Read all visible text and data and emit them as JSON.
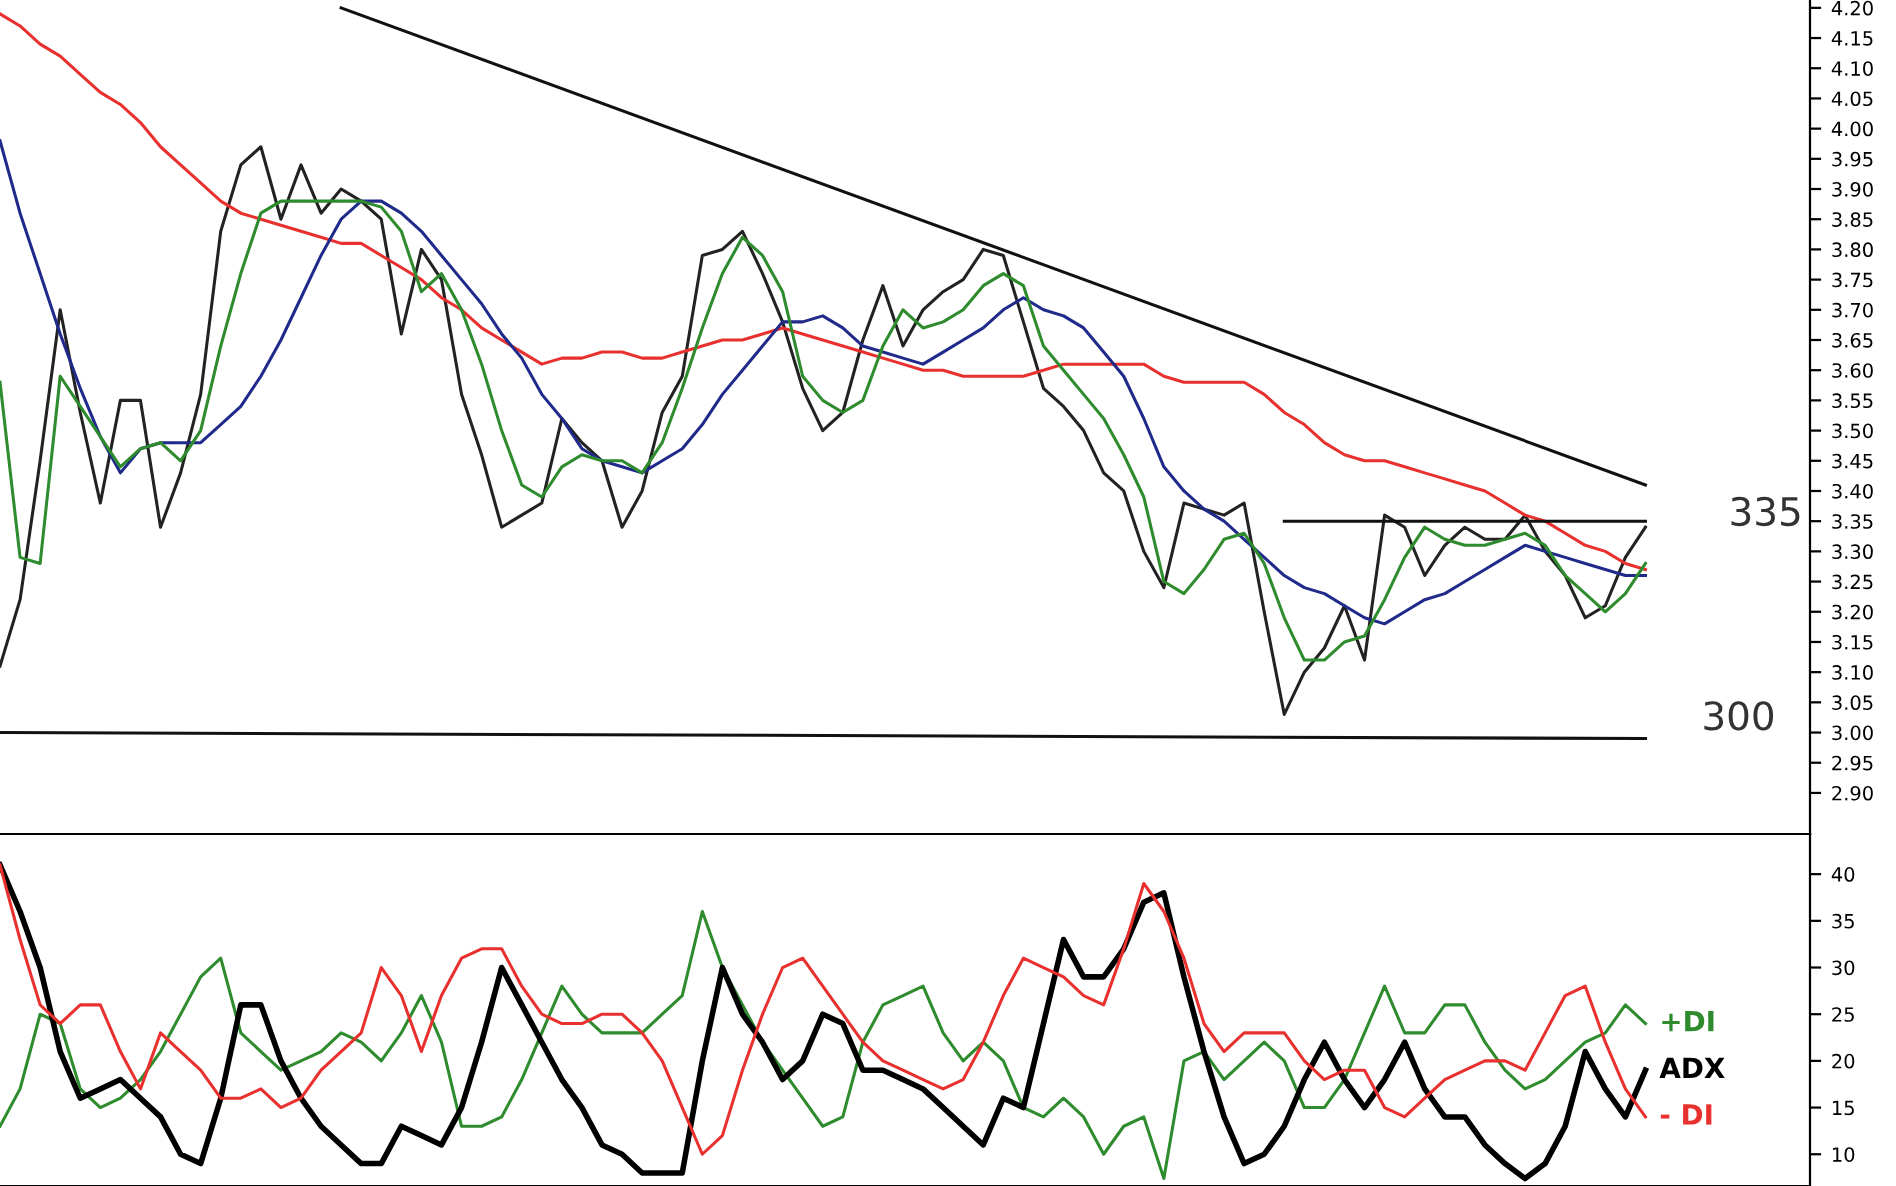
{
  "chart_data": [
    {
      "type": "line",
      "categories": [
        null,
        null,
        null,
        null,
        null,
        null,
        null,
        null,
        null,
        null,
        null,
        null,
        null,
        null,
        null,
        null,
        null,
        null,
        null,
        null,
        null,
        null,
        null,
        null,
        null,
        null,
        null,
        null,
        null,
        null,
        null,
        null,
        null,
        null,
        null,
        null,
        null,
        null,
        null,
        null,
        null,
        null,
        null,
        null,
        null,
        null,
        null,
        null,
        null,
        null,
        null,
        null,
        null,
        null,
        null,
        null,
        null,
        null,
        null,
        null,
        null,
        null,
        null,
        null,
        null,
        null,
        null,
        null,
        null,
        null,
        null,
        null,
        null,
        null,
        null,
        null,
        null,
        null,
        null,
        null,
        null,
        null,
        null
      ],
      "ylim": [
        2.832,
        4.213
      ],
      "tick_labels": "y",
      "grid": false,
      "legend": false,
      "marker": "none",
      "line_style": "solid",
      "yticks": [
        {
          "value": 2.9,
          "label": "2.90"
        },
        {
          "value": 2.95,
          "label": "2.95"
        },
        {
          "value": 3.0,
          "label": "3.00"
        },
        {
          "value": 3.05,
          "label": "3.05"
        },
        {
          "value": 3.1,
          "label": "3.10"
        },
        {
          "value": 3.15,
          "label": "3.15"
        },
        {
          "value": 3.2,
          "label": "3.20"
        },
        {
          "value": 3.25,
          "label": "3.25"
        },
        {
          "value": 3.3,
          "label": "3.30"
        },
        {
          "value": 3.35,
          "label": "3.35"
        },
        {
          "value": 3.4,
          "label": "3.40"
        },
        {
          "value": 3.45,
          "label": "3.45"
        },
        {
          "value": 3.5,
          "label": "3.50"
        },
        {
          "value": 3.55,
          "label": "3.55"
        },
        {
          "value": 3.6,
          "label": "3.60"
        },
        {
          "value": 3.65,
          "label": "3.65"
        },
        {
          "value": 3.7,
          "label": "3.70"
        },
        {
          "value": 3.75,
          "label": "3.75"
        },
        {
          "value": 3.8,
          "label": "3.80"
        },
        {
          "value": 3.85,
          "label": "3.85"
        },
        {
          "value": 3.9,
          "label": "3.90"
        },
        {
          "value": 3.95,
          "label": "3.95"
        },
        {
          "value": 4.0,
          "label": "4.00"
        },
        {
          "value": 4.05,
          "label": "4.05"
        },
        {
          "value": 4.1,
          "label": "4.10"
        },
        {
          "value": 4.15,
          "label": "4.15"
        },
        {
          "value": 4.2,
          "label": "4.20"
        }
      ],
      "annotations": [
        "335",
        "300"
      ],
      "series": [
        {
          "color": "#222222",
          "values": [
            3.11,
            3.22,
            3.45,
            3.7,
            3.53,
            3.38,
            3.55,
            3.55,
            3.34,
            3.43,
            3.56,
            3.83,
            3.94,
            3.97,
            3.85,
            3.94,
            3.86,
            3.9,
            3.88,
            3.85,
            3.66,
            3.8,
            3.75,
            3.56,
            3.46,
            3.34,
            3.36,
            3.38,
            3.52,
            3.48,
            3.45,
            3.34,
            3.4,
            3.53,
            3.59,
            3.79,
            3.8,
            3.83,
            3.76,
            3.68,
            3.57,
            3.5,
            3.53,
            3.65,
            3.74,
            3.64,
            3.7,
            3.73,
            3.75,
            3.8,
            3.79,
            3.68,
            3.57,
            3.54,
            3.5,
            3.43,
            3.4,
            3.3,
            3.24,
            3.38,
            3.37,
            3.36,
            3.38,
            3.2,
            3.03,
            3.1,
            3.14,
            3.21,
            3.12,
            3.36,
            3.34,
            3.26,
            3.31,
            3.34,
            3.32,
            3.32,
            3.36,
            3.3,
            3.26,
            3.19,
            3.21,
            3.29,
            3.34
          ]
        },
        {
          "color": "#e8312f",
          "values": [
            4.19,
            4.17,
            4.14,
            4.12,
            4.09,
            4.06,
            4.04,
            4.01,
            3.97,
            3.94,
            3.91,
            3.88,
            3.86,
            3.85,
            3.84,
            3.83,
            3.82,
            3.81,
            3.81,
            3.79,
            3.77,
            3.75,
            3.72,
            3.7,
            3.67,
            3.65,
            3.63,
            3.61,
            3.62,
            3.62,
            3.63,
            3.63,
            3.62,
            3.62,
            3.63,
            3.64,
            3.65,
            3.65,
            3.66,
            3.67,
            3.66,
            3.65,
            3.64,
            3.63,
            3.62,
            3.61,
            3.6,
            3.6,
            3.59,
            3.59,
            3.59,
            3.59,
            3.6,
            3.61,
            3.61,
            3.61,
            3.61,
            3.61,
            3.59,
            3.58,
            3.58,
            3.58,
            3.58,
            3.56,
            3.53,
            3.51,
            3.48,
            3.46,
            3.45,
            3.45,
            3.44,
            3.43,
            3.42,
            3.41,
            3.4,
            3.38,
            3.36,
            3.35,
            3.33,
            3.31,
            3.3,
            3.28,
            3.27
          ]
        },
        {
          "color": "#1f2a8a",
          "values": [
            3.98,
            3.86,
            3.76,
            3.66,
            3.57,
            3.49,
            3.43,
            3.47,
            3.48,
            3.48,
            3.48,
            3.51,
            3.54,
            3.59,
            3.65,
            3.72,
            3.79,
            3.85,
            3.88,
            3.88,
            3.86,
            3.83,
            3.79,
            3.75,
            3.71,
            3.66,
            3.62,
            3.56,
            3.52,
            3.47,
            3.45,
            3.44,
            3.43,
            3.45,
            3.47,
            3.51,
            3.56,
            3.6,
            3.64,
            3.68,
            3.68,
            3.69,
            3.67,
            3.64,
            3.63,
            3.62,
            3.61,
            3.63,
            3.65,
            3.67,
            3.7,
            3.72,
            3.7,
            3.69,
            3.67,
            3.63,
            3.59,
            3.52,
            3.44,
            3.4,
            3.37,
            3.35,
            3.32,
            3.29,
            3.26,
            3.24,
            3.23,
            3.21,
            3.19,
            3.18,
            3.2,
            3.22,
            3.23,
            3.25,
            3.27,
            3.29,
            3.31,
            3.3,
            3.29,
            3.28,
            3.27,
            3.26,
            3.26
          ]
        },
        {
          "color": "#2e8b2e",
          "values": [
            3.58,
            3.29,
            3.28,
            3.59,
            3.54,
            3.49,
            3.44,
            3.47,
            3.48,
            3.45,
            3.5,
            3.64,
            3.76,
            3.86,
            3.88,
            3.88,
            3.88,
            3.88,
            3.88,
            3.87,
            3.83,
            3.73,
            3.76,
            3.7,
            3.61,
            3.5,
            3.41,
            3.39,
            3.44,
            3.46,
            3.45,
            3.45,
            3.43,
            3.48,
            3.57,
            3.67,
            3.76,
            3.82,
            3.79,
            3.73,
            3.59,
            3.55,
            3.53,
            3.55,
            3.64,
            3.7,
            3.67,
            3.68,
            3.7,
            3.74,
            3.76,
            3.74,
            3.64,
            3.6,
            3.56,
            3.52,
            3.46,
            3.39,
            3.25,
            3.23,
            3.27,
            3.32,
            3.33,
            3.28,
            3.19,
            3.12,
            3.12,
            3.15,
            3.16,
            3.22,
            3.29,
            3.34,
            3.32,
            3.31,
            3.31,
            3.32,
            3.33,
            3.31,
            3.26,
            3.23,
            3.2,
            3.23,
            3.28
          ]
        },
        {
          "color": "#111111",
          "values": [
            null,
            null,
            null,
            null,
            null,
            null,
            null,
            null,
            null,
            null,
            null,
            null,
            null,
            null,
            null,
            null,
            null,
            4.2,
            null,
            null,
            null,
            null,
            null,
            null,
            null,
            null,
            null,
            null,
            null,
            null,
            null,
            null,
            null,
            null,
            null,
            null,
            null,
            null,
            null,
            null,
            null,
            null,
            null,
            null,
            null,
            null,
            null,
            null,
            null,
            null,
            null,
            null,
            null,
            null,
            null,
            null,
            null,
            null,
            null,
            null,
            null,
            null,
            null,
            null,
            null,
            null,
            null,
            null,
            null,
            null,
            null,
            null,
            null,
            null,
            null,
            null,
            null,
            null,
            null,
            null,
            null,
            null,
            3.41
          ]
        },
        {
          "color": "#111111",
          "values": [
            null,
            null,
            null,
            null,
            null,
            null,
            null,
            null,
            null,
            null,
            null,
            null,
            null,
            null,
            null,
            null,
            null,
            null,
            null,
            null,
            null,
            null,
            null,
            null,
            null,
            null,
            null,
            null,
            null,
            null,
            null,
            null,
            null,
            null,
            null,
            null,
            null,
            null,
            null,
            null,
            null,
            null,
            null,
            null,
            null,
            null,
            null,
            null,
            null,
            null,
            null,
            null,
            null,
            null,
            null,
            null,
            null,
            null,
            null,
            null,
            null,
            null,
            null,
            null,
            3.35,
            null,
            null,
            null,
            null,
            null,
            null,
            null,
            null,
            null,
            null,
            null,
            null,
            null,
            null,
            null,
            null,
            null,
            3.35
          ]
        },
        {
          "color": "#111111",
          "values": [
            3.0,
            null,
            null,
            null,
            null,
            null,
            null,
            null,
            null,
            null,
            null,
            null,
            null,
            null,
            null,
            null,
            null,
            null,
            null,
            null,
            null,
            null,
            null,
            null,
            null,
            null,
            null,
            null,
            null,
            null,
            null,
            null,
            null,
            null,
            null,
            null,
            null,
            null,
            null,
            null,
            null,
            null,
            null,
            null,
            null,
            null,
            null,
            null,
            null,
            null,
            null,
            null,
            null,
            null,
            null,
            null,
            null,
            null,
            null,
            null,
            null,
            null,
            null,
            null,
            null,
            null,
            null,
            null,
            null,
            null,
            null,
            null,
            null,
            null,
            null,
            null,
            null,
            null,
            null,
            null,
            null,
            null,
            2.99
          ]
        }
      ]
    },
    {
      "type": "line",
      "categories": [
        null,
        null,
        null,
        null,
        null,
        null,
        null,
        null,
        null,
        null,
        null,
        null,
        null,
        null,
        null,
        null,
        null,
        null,
        null,
        null,
        null,
        null,
        null,
        null,
        null,
        null,
        null,
        null,
        null,
        null,
        null,
        null,
        null,
        null,
        null,
        null,
        null,
        null,
        null,
        null,
        null,
        null,
        null,
        null,
        null,
        null,
        null,
        null,
        null,
        null,
        null,
        null,
        null,
        null,
        null,
        null,
        null,
        null,
        null,
        null,
        null,
        null,
        null,
        null,
        null,
        null,
        null,
        null,
        null,
        null,
        null,
        null,
        null,
        null,
        null,
        null,
        null,
        null,
        null,
        null,
        null,
        null,
        null
      ],
      "ylim": [
        6.6,
        44.3
      ],
      "tick_labels": "y",
      "grid": false,
      "legend": false,
      "marker": "none",
      "line_style": "solid",
      "yticks": [
        10,
        15,
        20,
        25,
        30,
        35,
        40
      ],
      "series": [
        {
          "name": "+DI",
          "color": "#2e8b2e",
          "values": [
            13,
            17,
            25,
            24,
            17,
            15,
            16,
            18,
            21,
            25,
            29,
            31,
            23,
            21,
            19,
            20,
            21,
            23,
            22,
            20,
            23,
            27,
            22,
            13,
            13,
            14,
            18,
            23,
            28,
            25,
            23,
            23,
            23,
            25,
            27,
            36,
            30,
            26,
            22,
            19,
            16,
            13,
            14,
            22,
            26,
            27,
            28,
            23,
            20,
            22,
            20,
            15,
            14,
            16,
            14,
            10,
            13,
            14,
            7.4,
            20,
            21,
            18,
            20,
            22,
            20,
            15,
            15,
            18,
            23,
            28,
            23,
            23,
            26,
            26,
            22,
            19,
            17,
            18,
            20,
            22,
            23,
            26,
            24
          ]
        },
        {
          "name": "ADX",
          "color": "#000000",
          "values": [
            41,
            36,
            30,
            21,
            16,
            17,
            18,
            16,
            14,
            10,
            9,
            16,
            26,
            26,
            20,
            16,
            13,
            11,
            9,
            9,
            13,
            12,
            11,
            15,
            22,
            30,
            26,
            22,
            18,
            15,
            11,
            10,
            8,
            8,
            8,
            20,
            30,
            25,
            22,
            18,
            20,
            25,
            24,
            19,
            19,
            18,
            17,
            15,
            13,
            11,
            16,
            15,
            24,
            33,
            29,
            29,
            32,
            37,
            38,
            29,
            21,
            14,
            9,
            10,
            13,
            18,
            22,
            18,
            15,
            18,
            22,
            17,
            14,
            14,
            11,
            9,
            7.4,
            9,
            13,
            21,
            17,
            14,
            19
          ]
        },
        {
          "name": "- DI",
          "color": "#e8312f",
          "values": [
            41,
            33,
            26,
            24,
            26,
            26,
            21,
            17,
            23,
            21,
            19,
            16,
            16,
            17,
            15,
            16,
            19,
            21,
            23,
            30,
            27,
            21,
            27,
            31,
            32,
            32,
            28,
            25,
            24,
            24,
            25,
            25,
            23,
            20,
            15,
            10,
            12,
            19,
            25,
            30,
            31,
            28,
            25,
            22,
            20,
            19,
            18,
            17,
            18,
            22,
            27,
            31,
            30,
            29,
            27,
            26,
            32,
            39,
            36,
            31,
            24,
            21,
            23,
            23,
            23,
            20,
            18,
            19,
            19,
            15,
            14,
            16,
            18,
            19,
            20,
            20,
            19,
            23,
            27,
            28,
            22,
            17,
            14
          ]
        }
      ]
    }
  ]
}
